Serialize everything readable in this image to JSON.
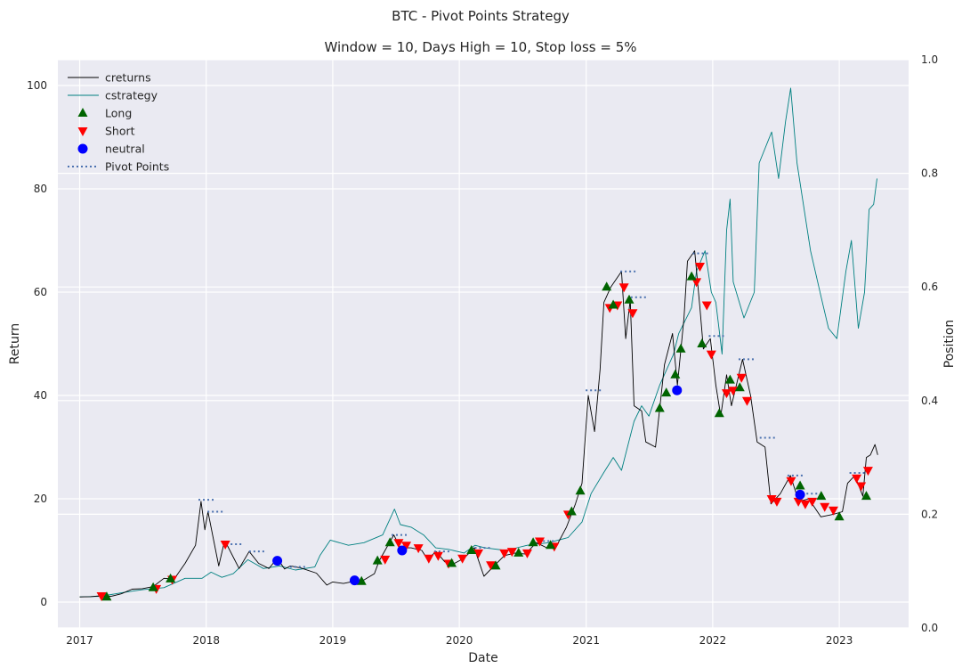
{
  "chart_data": {
    "type": "line",
    "title": "BTC - Pivot Points Strategy",
    "subtitle": "Window = 10, Days High = 10, Stop loss = 5%",
    "xlabel": "Date",
    "ylabel": "Return",
    "y2label": "Position",
    "x_range": [
      "2016-10-30",
      "2023-07-20"
    ],
    "ylim": [
      -5,
      105
    ],
    "y2lim": [
      0.0,
      1.0
    ],
    "x_ticks": [
      "2017",
      "2018",
      "2019",
      "2020",
      "2021",
      "2022",
      "2023"
    ],
    "y_ticks": [
      0,
      20,
      40,
      60,
      80,
      100
    ],
    "y2_ticks": [
      "0.0",
      "0.2",
      "0.4",
      "0.6",
      "0.8",
      "1.0"
    ],
    "grid": true,
    "legend_position": "top-left",
    "colors": {
      "background": "#eaeaf2",
      "grid": "#ffffff",
      "creturns": "#000000",
      "cstrategy": "#008080",
      "long": "#006400",
      "short": "#ff0000",
      "neutral": "#0000ff",
      "pivot": "#4c72b0"
    },
    "legend": [
      "creturns",
      "cstrategy",
      "Long",
      "Short",
      "neutral",
      "Pivot Points"
    ],
    "series": [
      {
        "name": "creturns",
        "points": [
          [
            "2017-01-01",
            1.0
          ],
          [
            "2017-02-01",
            1.05
          ],
          [
            "2017-03-01",
            1.2
          ],
          [
            "2017-04-01",
            1.1
          ],
          [
            "2017-05-01",
            1.6
          ],
          [
            "2017-06-01",
            2.5
          ],
          [
            "2017-07-01",
            2.6
          ],
          [
            "2017-08-01",
            3.0
          ],
          [
            "2017-09-01",
            4.6
          ],
          [
            "2017-10-01",
            4.5
          ],
          [
            "2017-11-01",
            7.5
          ],
          [
            "2017-12-01",
            11.0
          ],
          [
            "2017-12-17",
            19.5
          ],
          [
            "2017-12-28",
            14.0
          ],
          [
            "2018-01-06",
            17.5
          ],
          [
            "2018-02-06",
            7.0
          ],
          [
            "2018-02-20",
            11.0
          ],
          [
            "2018-03-01",
            11.2
          ],
          [
            "2018-04-06",
            6.5
          ],
          [
            "2018-05-05",
            9.8
          ],
          [
            "2018-06-01",
            7.5
          ],
          [
            "2018-07-01",
            6.5
          ],
          [
            "2018-07-25",
            8.5
          ],
          [
            "2018-08-15",
            6.4
          ],
          [
            "2018-09-01",
            7.0
          ],
          [
            "2018-10-01",
            6.6
          ],
          [
            "2018-11-15",
            5.6
          ],
          [
            "2018-12-15",
            3.3
          ],
          [
            "2019-01-01",
            3.9
          ],
          [
            "2019-02-01",
            3.6
          ],
          [
            "2019-03-01",
            4.0
          ],
          [
            "2019-04-01",
            4.3
          ],
          [
            "2019-05-01",
            5.5
          ],
          [
            "2019-05-15",
            8.0
          ],
          [
            "2019-06-26",
            13.0
          ],
          [
            "2019-07-15",
            10.5
          ],
          [
            "2019-08-15",
            10.5
          ],
          [
            "2019-09-15",
            10.0
          ],
          [
            "2019-10-01",
            8.3
          ],
          [
            "2019-10-26",
            9.8
          ],
          [
            "2019-11-20",
            7.8
          ],
          [
            "2019-12-15",
            7.4
          ],
          [
            "2020-01-15",
            8.5
          ],
          [
            "2020-02-13",
            10.5
          ],
          [
            "2020-03-12",
            5.0
          ],
          [
            "2020-04-10",
            7.0
          ],
          [
            "2020-05-10",
            9.0
          ],
          [
            "2020-06-10",
            9.5
          ],
          [
            "2020-07-10",
            9.3
          ],
          [
            "2020-08-10",
            11.5
          ],
          [
            "2020-09-10",
            10.5
          ],
          [
            "2020-10-10",
            11.2
          ],
          [
            "2020-11-05",
            14.5
          ],
          [
            "2020-12-01",
            19.0
          ],
          [
            "2020-12-20",
            23.0
          ],
          [
            "2021-01-07",
            40.0
          ],
          [
            "2021-01-25",
            33.0
          ],
          [
            "2021-02-10",
            45.0
          ],
          [
            "2021-02-21",
            58.0
          ],
          [
            "2021-03-13",
            61.0
          ],
          [
            "2021-04-13",
            64.0
          ],
          [
            "2021-04-25",
            51.0
          ],
          [
            "2021-05-08",
            58.5
          ],
          [
            "2021-05-19",
            38.0
          ],
          [
            "2021-06-10",
            37.0
          ],
          [
            "2021-06-22",
            31.0
          ],
          [
            "2021-07-20",
            30.0
          ],
          [
            "2021-08-15",
            46.0
          ],
          [
            "2021-09-07",
            52.0
          ],
          [
            "2021-09-21",
            42.0
          ],
          [
            "2021-10-10",
            55.0
          ],
          [
            "2021-10-20",
            66.0
          ],
          [
            "2021-11-10",
            68.0
          ],
          [
            "2021-11-25",
            57.0
          ],
          [
            "2021-12-05",
            49.0
          ],
          [
            "2021-12-25",
            51.0
          ],
          [
            "2022-01-10",
            42.0
          ],
          [
            "2022-01-24",
            36.0
          ],
          [
            "2022-02-10",
            44.0
          ],
          [
            "2022-02-24",
            38.0
          ],
          [
            "2022-03-28",
            47.0
          ],
          [
            "2022-04-20",
            40.0
          ],
          [
            "2022-05-09",
            31.0
          ],
          [
            "2022-06-01",
            30.0
          ],
          [
            "2022-06-18",
            19.0
          ],
          [
            "2022-07-15",
            21.0
          ],
          [
            "2022-08-13",
            24.5
          ],
          [
            "2022-09-06",
            19.5
          ],
          [
            "2022-10-05",
            20.0
          ],
          [
            "2022-11-09",
            16.5
          ],
          [
            "2022-12-15",
            17.0
          ],
          [
            "2023-01-10",
            17.5
          ],
          [
            "2023-01-25",
            23.0
          ],
          [
            "2023-02-15",
            24.5
          ],
          [
            "2023-03-10",
            20.5
          ],
          [
            "2023-03-20",
            28.0
          ],
          [
            "2023-04-01",
            28.5
          ],
          [
            "2023-04-14",
            30.5
          ],
          [
            "2023-04-22",
            28.5
          ]
        ]
      },
      {
        "name": "cstrategy",
        "points": [
          [
            "2017-01-01",
            1.0
          ],
          [
            "2017-03-01",
            1.1
          ],
          [
            "2017-05-01",
            1.8
          ],
          [
            "2017-07-01",
            2.4
          ],
          [
            "2017-09-01",
            2.8
          ],
          [
            "2017-11-01",
            4.6
          ],
          [
            "2017-12-20",
            4.6
          ],
          [
            "2018-01-15",
            5.8
          ],
          [
            "2018-02-15",
            4.8
          ],
          [
            "2018-03-20",
            5.5
          ],
          [
            "2018-05-01",
            8.2
          ],
          [
            "2018-06-15",
            6.5
          ],
          [
            "2018-08-01",
            7.0
          ],
          [
            "2018-09-15",
            6.2
          ],
          [
            "2018-11-10",
            6.8
          ],
          [
            "2018-11-25",
            9.0
          ],
          [
            "2018-12-25",
            12.0
          ],
          [
            "2019-02-15",
            11.0
          ],
          [
            "2019-04-01",
            11.5
          ],
          [
            "2019-05-25",
            13.0
          ],
          [
            "2019-06-28",
            18.0
          ],
          [
            "2019-07-15",
            15.0
          ],
          [
            "2019-08-15",
            14.5
          ],
          [
            "2019-09-20",
            13.0
          ],
          [
            "2019-10-25",
            10.5
          ],
          [
            "2019-12-01",
            10.2
          ],
          [
            "2020-01-15",
            9.5
          ],
          [
            "2020-02-15",
            11.0
          ],
          [
            "2020-03-15",
            10.5
          ],
          [
            "2020-05-15",
            10.0
          ],
          [
            "2020-07-15",
            11.0
          ],
          [
            "2020-09-15",
            11.5
          ],
          [
            "2020-11-10",
            12.5
          ],
          [
            "2020-12-20",
            15.5
          ],
          [
            "2021-01-15",
            21.0
          ],
          [
            "2021-02-20",
            25.0
          ],
          [
            "2021-03-20",
            28.0
          ],
          [
            "2021-04-13",
            25.5
          ],
          [
            "2021-05-19",
            35.0
          ],
          [
            "2021-06-10",
            38.0
          ],
          [
            "2021-07-01",
            36.0
          ],
          [
            "2021-08-01",
            42.0
          ],
          [
            "2021-09-10",
            48.0
          ],
          [
            "2021-09-25",
            52.0
          ],
          [
            "2021-11-01",
            57.0
          ],
          [
            "2021-11-15",
            64.0
          ],
          [
            "2021-12-10",
            68.0
          ],
          [
            "2021-12-28",
            60.0
          ],
          [
            "2022-01-10",
            58.0
          ],
          [
            "2022-01-28",
            48.0
          ],
          [
            "2022-02-10",
            72.0
          ],
          [
            "2022-02-20",
            78.0
          ],
          [
            "2022-03-01",
            62.0
          ],
          [
            "2022-04-01",
            55.0
          ],
          [
            "2022-05-01",
            60.0
          ],
          [
            "2022-05-15",
            85.0
          ],
          [
            "2022-06-20",
            91.0
          ],
          [
            "2022-07-10",
            82.0
          ],
          [
            "2022-07-30",
            93.0
          ],
          [
            "2022-08-14",
            99.5
          ],
          [
            "2022-09-01",
            85.0
          ],
          [
            "2022-10-10",
            68.0
          ],
          [
            "2022-11-10",
            59.0
          ],
          [
            "2022-12-01",
            53.0
          ],
          [
            "2022-12-25",
            51.0
          ],
          [
            "2023-01-20",
            64.0
          ],
          [
            "2023-02-05",
            70.0
          ],
          [
            "2023-02-25",
            53.0
          ],
          [
            "2023-03-15",
            60.0
          ],
          [
            "2023-03-28",
            76.0
          ],
          [
            "2023-04-10",
            77.0
          ],
          [
            "2023-04-20",
            82.0
          ]
        ]
      }
    ],
    "long": [
      [
        "2017-03-20",
        1.0
      ],
      [
        "2017-08-01",
        2.8
      ],
      [
        "2017-09-20",
        4.5
      ],
      [
        "2019-03-25",
        4.0
      ],
      [
        "2019-05-10",
        8.0
      ],
      [
        "2019-06-15",
        11.5
      ],
      [
        "2019-12-10",
        7.5
      ],
      [
        "2020-02-05",
        10.0
      ],
      [
        "2020-04-15",
        7.0
      ],
      [
        "2020-06-20",
        9.5
      ],
      [
        "2020-08-01",
        11.5
      ],
      [
        "2020-09-20",
        11.0
      ],
      [
        "2020-11-20",
        17.5
      ],
      [
        "2020-12-15",
        21.5
      ],
      [
        "2021-03-01",
        61.0
      ],
      [
        "2021-03-20",
        57.5
      ],
      [
        "2021-05-05",
        58.5
      ],
      [
        "2021-08-01",
        37.5
      ],
      [
        "2021-08-20",
        40.5
      ],
      [
        "2021-09-15",
        44.0
      ],
      [
        "2021-10-01",
        49.0
      ],
      [
        "2021-11-01",
        63.0
      ],
      [
        "2021-12-01",
        50.0
      ],
      [
        "2022-01-20",
        36.5
      ],
      [
        "2022-02-20",
        43.0
      ],
      [
        "2022-03-20",
        41.5
      ],
      [
        "2022-09-10",
        22.5
      ],
      [
        "2022-11-10",
        20.5
      ],
      [
        "2023-01-01",
        16.5
      ],
      [
        "2023-03-20",
        20.5
      ]
    ],
    "short": [
      [
        "2017-03-05",
        1.2
      ],
      [
        "2017-08-10",
        2.6
      ],
      [
        "2017-09-25",
        4.4
      ],
      [
        "2018-02-25",
        11.2
      ],
      [
        "2019-06-01",
        8.3
      ],
      [
        "2019-07-10",
        11.5
      ],
      [
        "2019-08-01",
        11.0
      ],
      [
        "2019-09-05",
        10.5
      ],
      [
        "2019-10-05",
        8.5
      ],
      [
        "2019-11-01",
        9.0
      ],
      [
        "2019-12-01",
        7.5
      ],
      [
        "2020-01-10",
        8.5
      ],
      [
        "2020-02-25",
        9.5
      ],
      [
        "2020-04-01",
        7.2
      ],
      [
        "2020-05-10",
        9.5
      ],
      [
        "2020-06-01",
        9.8
      ],
      [
        "2020-07-15",
        9.5
      ],
      [
        "2020-08-20",
        11.8
      ],
      [
        "2020-10-01",
        10.8
      ],
      [
        "2020-11-10",
        17.0
      ],
      [
        "2021-03-10",
        57.0
      ],
      [
        "2021-04-01",
        57.5
      ],
      [
        "2021-04-20",
        61.0
      ],
      [
        "2021-05-15",
        56.0
      ],
      [
        "2021-11-15",
        62.0
      ],
      [
        "2021-11-25",
        65.0
      ],
      [
        "2021-12-15",
        57.5
      ],
      [
        "2021-12-28",
        48.0
      ],
      [
        "2022-02-10",
        40.5
      ],
      [
        "2022-03-01",
        41.0
      ],
      [
        "2022-03-25",
        43.5
      ],
      [
        "2022-04-10",
        39.0
      ],
      [
        "2022-06-20",
        20.0
      ],
      [
        "2022-07-05",
        19.5
      ],
      [
        "2022-08-15",
        23.5
      ],
      [
        "2022-09-05",
        19.5
      ],
      [
        "2022-09-25",
        19.0
      ],
      [
        "2022-10-15",
        19.5
      ],
      [
        "2022-11-20",
        18.5
      ],
      [
        "2022-12-15",
        17.8
      ],
      [
        "2023-02-20",
        24.0
      ],
      [
        "2023-03-05",
        22.5
      ],
      [
        "2023-03-25",
        25.5
      ]
    ],
    "neutral": [
      [
        "2018-07-25",
        8.0
      ],
      [
        "2019-03-05",
        4.2
      ],
      [
        "2019-07-20",
        10.0
      ],
      [
        "2021-09-20",
        41.0
      ],
      [
        "2022-09-10",
        20.8
      ]
    ],
    "pivot": [
      [
        "2017-12-25",
        19.8
      ],
      [
        "2018-01-20",
        17.5
      ],
      [
        "2018-03-15",
        11.2
      ],
      [
        "2018-05-20",
        9.8
      ],
      [
        "2018-09-15",
        6.8
      ],
      [
        "2019-07-05",
        13.0
      ],
      [
        "2019-11-05",
        9.8
      ],
      [
        "2020-03-01",
        10.5
      ],
      [
        "2020-09-01",
        11.8
      ],
      [
        "2021-01-15",
        41.0
      ],
      [
        "2021-04-25",
        64.0
      ],
      [
        "2021-05-25",
        59.0
      ],
      [
        "2021-11-20",
        67.5
      ],
      [
        "2022-01-05",
        51.5
      ],
      [
        "2022-04-01",
        47.0
      ],
      [
        "2022-06-01",
        31.8
      ],
      [
        "2022-08-20",
        24.5
      ],
      [
        "2022-10-01",
        21.0
      ],
      [
        "2023-02-15",
        25.0
      ]
    ]
  }
}
